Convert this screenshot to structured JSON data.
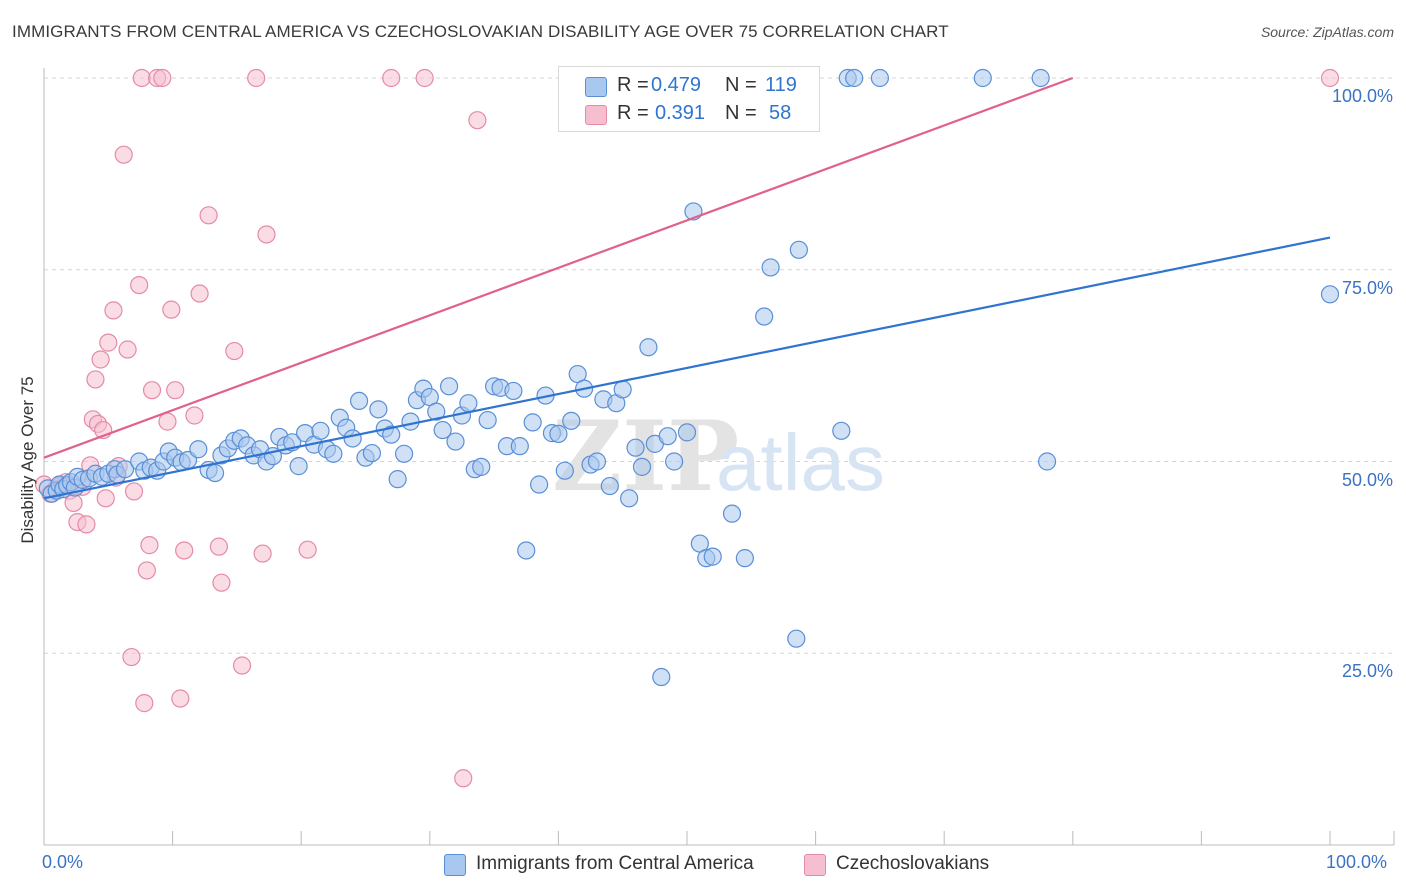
{
  "title": "IMMIGRANTS FROM CENTRAL AMERICA VS CZECHOSLOVAKIAN DISABILITY AGE OVER 75 CORRELATION CHART",
  "source": "Source: ZipAtlas.com",
  "watermark": {
    "zip": "ZIP",
    "atlas": "atlas"
  },
  "legend_top": [
    {
      "r_label": "R =",
      "r_value": "0.479",
      "n_label": "N =",
      "n_value": "119"
    },
    {
      "r_label": "R =",
      "r_value": "0.391",
      "n_label": "N =",
      "n_value": "58"
    }
  ],
  "legend_bottom": [
    {
      "label": "Immigrants from Central America"
    },
    {
      "label": "Czechoslovakians"
    }
  ],
  "colors": {
    "blue_fill": "#a9c8ef",
    "blue_stroke": "#5a8fd6",
    "blue_line": "#2f74d0",
    "pink_fill": "#f5bfd0",
    "pink_stroke": "#e58aa8",
    "pink_line": "#e0628c",
    "tick_text": "#3b73c2",
    "grid": "#d7d7d7"
  },
  "chart_data": {
    "type": "scatter",
    "title": "IMMIGRANTS FROM CENTRAL AMERICA VS CZECHOSLOVAKIAN DISABILITY AGE OVER 75 CORRELATION CHART",
    "xlabel": "",
    "ylabel": "Disability Age Over 75",
    "xlim": [
      0,
      100
    ],
    "ylim": [
      0,
      100
    ],
    "x_tick_labels": [
      "0.0%",
      "100.0%"
    ],
    "y_tick_labels": [
      "25.0%",
      "50.0%",
      "75.0%",
      "100.0%"
    ],
    "y_ticks": [
      25,
      50,
      75,
      100
    ],
    "grid": true,
    "legend_position": "bottom",
    "series": [
      {
        "name": "Immigrants from Central America",
        "color": "#5a8fd6",
        "r": 0.479,
        "n": 119,
        "trend": {
          "x": [
            0,
            100
          ],
          "y": [
            45.2,
            79.2
          ]
        },
        "points": [
          [
            0.3,
            46.5
          ],
          [
            0.6,
            45.8
          ],
          [
            1.0,
            46.2
          ],
          [
            1.2,
            47.0
          ],
          [
            1.5,
            46.4
          ],
          [
            1.8,
            46.9
          ],
          [
            2.1,
            47.3
          ],
          [
            2.4,
            46.6
          ],
          [
            2.6,
            48.0
          ],
          [
            3.0,
            47.6
          ],
          [
            3.5,
            47.8
          ],
          [
            4.0,
            48.4
          ],
          [
            4.5,
            48.0
          ],
          [
            5.0,
            48.4
          ],
          [
            5.5,
            49.0
          ],
          [
            5.7,
            48.3
          ],
          [
            6.3,
            49.0
          ],
          [
            7.4,
            50.0
          ],
          [
            7.8,
            48.8
          ],
          [
            8.3,
            49.2
          ],
          [
            8.8,
            48.8
          ],
          [
            9.3,
            50.0
          ],
          [
            9.7,
            51.3
          ],
          [
            10.2,
            50.5
          ],
          [
            10.7,
            49.9
          ],
          [
            11.2,
            50.2
          ],
          [
            12.0,
            51.6
          ],
          [
            12.8,
            48.9
          ],
          [
            13.3,
            48.5
          ],
          [
            13.8,
            50.8
          ],
          [
            14.3,
            51.7
          ],
          [
            14.8,
            52.7
          ],
          [
            15.3,
            53.0
          ],
          [
            15.8,
            52.1
          ],
          [
            16.3,
            50.8
          ],
          [
            16.8,
            51.6
          ],
          [
            17.3,
            50.0
          ],
          [
            17.8,
            50.7
          ],
          [
            18.3,
            53.2
          ],
          [
            18.8,
            52.1
          ],
          [
            19.3,
            52.5
          ],
          [
            19.8,
            49.4
          ],
          [
            20.3,
            53.7
          ],
          [
            21.0,
            52.2
          ],
          [
            21.5,
            54.0
          ],
          [
            22.0,
            51.6
          ],
          [
            22.5,
            51.0
          ],
          [
            23.0,
            55.7
          ],
          [
            23.5,
            54.4
          ],
          [
            24.0,
            53.0
          ],
          [
            24.5,
            57.9
          ],
          [
            25.0,
            50.5
          ],
          [
            25.5,
            51.1
          ],
          [
            26.0,
            56.8
          ],
          [
            26.5,
            54.3
          ],
          [
            27.0,
            53.5
          ],
          [
            27.5,
            47.7
          ],
          [
            28.0,
            51.0
          ],
          [
            28.5,
            55.2
          ],
          [
            29.0,
            58.0
          ],
          [
            29.5,
            59.5
          ],
          [
            30.0,
            58.4
          ],
          [
            30.5,
            56.5
          ],
          [
            31.0,
            54.1
          ],
          [
            31.5,
            59.8
          ],
          [
            32.0,
            52.6
          ],
          [
            32.5,
            56.0
          ],
          [
            33.0,
            57.6
          ],
          [
            33.5,
            49.0
          ],
          [
            34.0,
            49.3
          ],
          [
            34.5,
            55.4
          ],
          [
            35.0,
            59.8
          ],
          [
            35.5,
            59.6
          ],
          [
            36.0,
            52.0
          ],
          [
            36.5,
            59.2
          ],
          [
            37.0,
            52.0
          ],
          [
            37.5,
            38.4
          ],
          [
            38.0,
            55.1
          ],
          [
            38.5,
            47.0
          ],
          [
            39.0,
            58.6
          ],
          [
            39.5,
            53.7
          ],
          [
            40.0,
            53.6
          ],
          [
            40.5,
            48.8
          ],
          [
            41.0,
            55.3
          ],
          [
            41.5,
            61.4
          ],
          [
            42.0,
            59.5
          ],
          [
            42.5,
            49.6
          ],
          [
            43.0,
            50.0
          ],
          [
            43.5,
            58.1
          ],
          [
            44.0,
            46.8
          ],
          [
            44.5,
            57.6
          ],
          [
            45.0,
            59.4
          ],
          [
            45.5,
            45.2
          ],
          [
            46.0,
            51.8
          ],
          [
            46.5,
            49.3
          ],
          [
            47.0,
            64.9
          ],
          [
            47.5,
            52.3
          ],
          [
            48.0,
            21.9
          ],
          [
            48.5,
            53.3
          ],
          [
            49.0,
            50.0
          ],
          [
            50.0,
            53.8
          ],
          [
            50.5,
            82.6
          ],
          [
            51.0,
            39.3
          ],
          [
            51.5,
            37.4
          ],
          [
            52.0,
            37.6
          ],
          [
            53.5,
            43.2
          ],
          [
            54.5,
            37.4
          ],
          [
            56.0,
            68.9
          ],
          [
            56.5,
            75.3
          ],
          [
            58.5,
            26.9
          ],
          [
            58.7,
            77.6
          ],
          [
            59.5,
            100
          ],
          [
            62.0,
            54.0
          ],
          [
            62.5,
            100
          ],
          [
            63.0,
            100
          ],
          [
            65.0,
            100
          ],
          [
            73.0,
            100
          ],
          [
            77.5,
            100
          ],
          [
            78.0,
            50.0
          ],
          [
            100,
            71.8
          ]
        ]
      },
      {
        "name": "Czechoslovakians",
        "color": "#e58aa8",
        "r": 0.391,
        "n": 58,
        "trend": {
          "x": [
            0,
            80
          ],
          "y": [
            50.5,
            100
          ]
        },
        "points": [
          [
            0.0,
            47.0
          ],
          [
            0.5,
            45.8
          ],
          [
            0.9,
            46.4
          ],
          [
            1.3,
            46.9
          ],
          [
            1.7,
            47.3
          ],
          [
            2.0,
            46.2
          ],
          [
            2.3,
            44.6
          ],
          [
            2.6,
            42.1
          ],
          [
            3.0,
            46.7
          ],
          [
            3.3,
            41.8
          ],
          [
            3.6,
            49.5
          ],
          [
            3.8,
            55.5
          ],
          [
            4.0,
            60.7
          ],
          [
            4.2,
            54.9
          ],
          [
            4.4,
            63.3
          ],
          [
            4.6,
            54.1
          ],
          [
            4.8,
            45.2
          ],
          [
            5.0,
            65.5
          ],
          [
            5.4,
            69.7
          ],
          [
            5.6,
            47.9
          ],
          [
            5.8,
            49.4
          ],
          [
            6.2,
            90.0
          ],
          [
            6.5,
            64.6
          ],
          [
            6.8,
            24.5
          ],
          [
            7.0,
            46.1
          ],
          [
            7.4,
            73.0
          ],
          [
            7.6,
            100
          ],
          [
            7.8,
            18.5
          ],
          [
            8.0,
            35.8
          ],
          [
            8.2,
            39.1
          ],
          [
            8.4,
            59.3
          ],
          [
            8.8,
            100
          ],
          [
            9.2,
            100
          ],
          [
            9.6,
            55.2
          ],
          [
            9.9,
            69.8
          ],
          [
            10.2,
            59.3
          ],
          [
            10.6,
            19.1
          ],
          [
            10.9,
            38.4
          ],
          [
            11.7,
            56.0
          ],
          [
            12.1,
            71.9
          ],
          [
            12.8,
            82.1
          ],
          [
            13.6,
            38.9
          ],
          [
            13.8,
            34.2
          ],
          [
            14.8,
            64.4
          ],
          [
            15.4,
            23.4
          ],
          [
            16.5,
            100
          ],
          [
            17.0,
            38.0
          ],
          [
            17.3,
            79.6
          ],
          [
            20.5,
            38.5
          ],
          [
            27.0,
            100
          ],
          [
            29.6,
            100
          ],
          [
            32.6,
            8.7
          ],
          [
            33.7,
            94.5
          ],
          [
            100,
            100
          ]
        ]
      }
    ]
  }
}
